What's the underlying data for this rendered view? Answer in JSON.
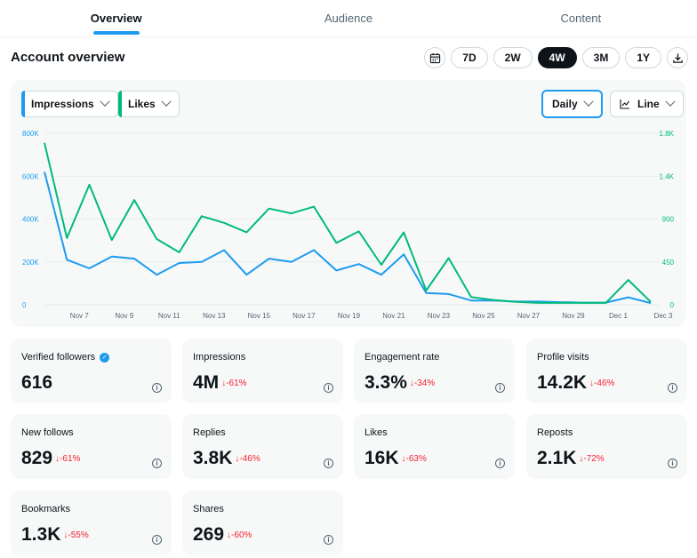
{
  "tabs": [
    {
      "label": "Overview",
      "active": true
    },
    {
      "label": "Audience",
      "active": false
    },
    {
      "label": "Content",
      "active": false
    }
  ],
  "header": {
    "title": "Account overview",
    "ranges": [
      {
        "label": "7D",
        "active": false
      },
      {
        "label": "2W",
        "active": false
      },
      {
        "label": "4W",
        "active": true
      },
      {
        "label": "3M",
        "active": false
      },
      {
        "label": "1Y",
        "active": false
      }
    ]
  },
  "controls": {
    "metric1": "Impressions",
    "metric2": "Likes",
    "granularity": "Daily",
    "chart_style": "Line"
  },
  "colors": {
    "impressions": "#1d9bf0",
    "likes": "#00ba7c",
    "negative": "#f4212e",
    "accent": "#1d9bf0"
  },
  "chart_data": {
    "type": "line",
    "x": [
      "Nov 6",
      "Nov 7",
      "Nov 8",
      "Nov 9",
      "Nov 10",
      "Nov 11",
      "Nov 12",
      "Nov 13",
      "Nov 14",
      "Nov 15",
      "Nov 16",
      "Nov 17",
      "Nov 18",
      "Nov 19",
      "Nov 20",
      "Nov 21",
      "Nov 22",
      "Nov 23",
      "Nov 24",
      "Nov 25",
      "Nov 26",
      "Nov 27",
      "Nov 28",
      "Nov 29",
      "Nov 30",
      "Dec 1",
      "Dec 2",
      "Dec 3"
    ],
    "tick_labels": [
      "Nov 7",
      "Nov 9",
      "Nov 11",
      "Nov 13",
      "Nov 15",
      "Nov 17",
      "Nov 19",
      "Nov 21",
      "Nov 23",
      "Nov 25",
      "Nov 27",
      "Nov 29",
      "Dec 1",
      "Dec 3"
    ],
    "left_axis": {
      "ticks": [
        "0",
        "200K",
        "400K",
        "600K",
        "800K"
      ],
      "range": [
        0,
        800000
      ]
    },
    "right_axis": {
      "ticks": [
        "0",
        "450",
        "900",
        "1.4K",
        "1.8K"
      ],
      "range": [
        0,
        1800
      ]
    },
    "series": [
      {
        "name": "Impressions",
        "axis": "left",
        "values": [
          620000,
          210000,
          170000,
          225000,
          215000,
          140000,
          195000,
          200000,
          255000,
          140000,
          215000,
          200000,
          255000,
          160000,
          190000,
          140000,
          235000,
          55000,
          50000,
          20000,
          20000,
          15000,
          15000,
          12000,
          10000,
          10000,
          35000,
          8000
        ]
      },
      {
        "name": "Likes",
        "axis": "right",
        "values": [
          1700,
          700,
          1260,
          680,
          1100,
          690,
          550,
          930,
          860,
          760,
          1010,
          960,
          1030,
          650,
          770,
          420,
          760,
          150,
          490,
          80,
          50,
          30,
          20,
          20,
          20,
          20,
          260,
          30
        ]
      }
    ],
    "grid": true,
    "legend": "none"
  },
  "cards": [
    {
      "label": "Verified followers",
      "value": "616",
      "delta": "",
      "verified": true
    },
    {
      "label": "Impressions",
      "value": "4M",
      "delta": "↓-61%"
    },
    {
      "label": "Engagement rate",
      "value": "3.3%",
      "delta": "↓-34%"
    },
    {
      "label": "Profile visits",
      "value": "14.2K",
      "delta": "↓-46%"
    },
    {
      "label": "New follows",
      "value": "829",
      "delta": "↓-61%"
    },
    {
      "label": "Replies",
      "value": "3.8K",
      "delta": "↓-46%"
    },
    {
      "label": "Likes",
      "value": "16K",
      "delta": "↓-63%"
    },
    {
      "label": "Reposts",
      "value": "2.1K",
      "delta": "↓-72%"
    },
    {
      "label": "Bookmarks",
      "value": "1.3K",
      "delta": "↓-55%"
    },
    {
      "label": "Shares",
      "value": "269",
      "delta": "↓-60%"
    }
  ],
  "icons": {
    "calendar": "calendar-icon",
    "download": "download-icon",
    "info": "info-icon",
    "verified": "verified-badge-icon",
    "line_chart": "line-chart-icon"
  }
}
